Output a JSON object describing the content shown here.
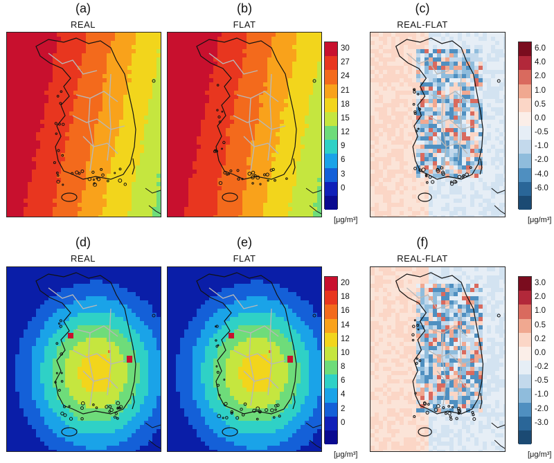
{
  "panels": [
    {
      "label": "(a)",
      "title": "REAL",
      "kind": "pm25"
    },
    {
      "label": "(b)",
      "title": "FLAT",
      "kind": "pm25"
    },
    {
      "label": "(c)",
      "title": "REAL-FLAT",
      "kind": "diff"
    },
    {
      "label": "(d)",
      "title": "REAL",
      "kind": "pm10"
    },
    {
      "label": "(e)",
      "title": "FLAT",
      "kind": "pm10"
    },
    {
      "label": "(f)",
      "title": "REAL-FLAT",
      "kind": "diff2"
    }
  ],
  "colorbars": [
    {
      "ticks": [
        "30",
        "27",
        "24",
        "21",
        "18",
        "15",
        "12",
        "9",
        "6",
        "3",
        "0"
      ],
      "colors": [
        "#c8102e",
        "#e8361f",
        "#f36a1c",
        "#f9a21b",
        "#f2d51c",
        "#c5e63f",
        "#6edc7a",
        "#2fd1c6",
        "#1aa3e8",
        "#1460d8",
        "#1020b8",
        "#0a0a90"
      ],
      "unit": "[μg/m³]"
    },
    {
      "ticks": [
        "6.0",
        "4.0",
        "2.0",
        "1.0",
        "0.5",
        "0.0",
        "-0.5",
        "-1.0",
        "-2.0",
        "-4.0",
        "-6.0"
      ],
      "colors": [
        "#7a0c1e",
        "#b2283a",
        "#d96a5e",
        "#f0a890",
        "#fbd6c6",
        "#fbeee8",
        "#e6eef6",
        "#c3d9ec",
        "#8fbcdc",
        "#4f8fc0",
        "#2a6698",
        "#1b4a73"
      ],
      "unit": "[μg/m³]"
    },
    {
      "ticks": [
        "20",
        "18",
        "16",
        "14",
        "12",
        "10",
        "8",
        "6",
        "4",
        "2",
        "0"
      ],
      "colors": [
        "#c8102e",
        "#e8361f",
        "#f36a1c",
        "#f9a21b",
        "#f2d51c",
        "#c5e63f",
        "#6edc7a",
        "#2fd1c6",
        "#1aa3e8",
        "#1460d8",
        "#1020b8",
        "#0a0a90"
      ],
      "unit": "[μg/m³]"
    },
    {
      "ticks": [
        "3.0",
        "2.0",
        "1.0",
        "0.5",
        "0.2",
        "0.0",
        "-0.2",
        "-0.5",
        "-1.0",
        "-2.0",
        "-3.0"
      ],
      "colors": [
        "#7a0c1e",
        "#b2283a",
        "#d96a5e",
        "#f0a890",
        "#fbd6c6",
        "#fbeee8",
        "#e6eef6",
        "#c3d9ec",
        "#8fbcdc",
        "#4f8fc0",
        "#2a6698",
        "#1b4a73"
      ],
      "unit": "[μg/m³]"
    }
  ]
}
